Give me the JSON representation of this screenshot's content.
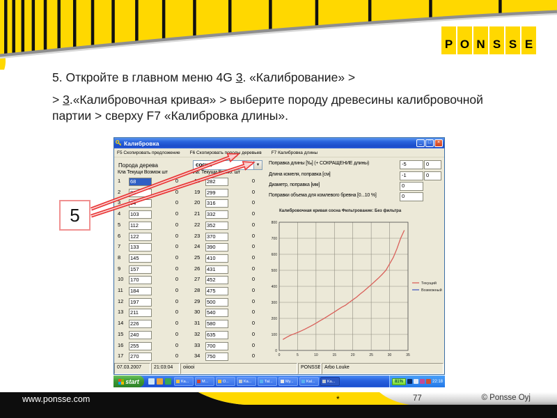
{
  "logo_letters": [
    "P",
    "O",
    "N",
    "S",
    "S",
    "E"
  ],
  "instructions": {
    "line1_pre": "5. Откройте в главном меню 4G ",
    "line1_num": "3",
    "line1_post": ". «Калибрование» >",
    "line2_pre": "> ",
    "line2_num": "3",
    "line2_post": ".«Калибровочная кривая» > выберите породу древесины калибровочной партии > сверху F7 «Калибровка длины»."
  },
  "annotation": {
    "number": "5"
  },
  "window": {
    "title": "Калибровка",
    "titlebar_buttons": [
      "minimize",
      "restore",
      "close"
    ],
    "menu_items": [
      "F5 Скопировать предложение",
      "F6 Скопировать породы деревьев",
      "F7 Калибровка длины"
    ],
    "species_label": "Порода дерева",
    "species_value": "сосна",
    "table_header_left": "Кла  Текущи Возмож  шт",
    "table_header_right": "Кла:  Текущи Возмо:  шт",
    "selected_class": "1",
    "table_left": [
      [
        "1",
        "68",
        "0"
      ],
      [
        "2",
        "82",
        "0"
      ],
      [
        "3",
        "94",
        "0"
      ],
      [
        "4",
        "103",
        "0"
      ],
      [
        "5",
        "112",
        "0"
      ],
      [
        "6",
        "122",
        "0"
      ],
      [
        "7",
        "133",
        "0"
      ],
      [
        "8",
        "145",
        "0"
      ],
      [
        "9",
        "157",
        "0"
      ],
      [
        "10",
        "170",
        "0"
      ],
      [
        "11",
        "184",
        "0"
      ],
      [
        "12",
        "197",
        "0"
      ],
      [
        "13",
        "211",
        "0"
      ],
      [
        "14",
        "226",
        "0"
      ],
      [
        "15",
        "240",
        "0"
      ],
      [
        "16",
        "255",
        "0"
      ],
      [
        "17",
        "270",
        "0"
      ]
    ],
    "table_right": [
      [
        "18",
        "282",
        "0"
      ],
      [
        "19",
        "299",
        "0"
      ],
      [
        "20",
        "316",
        "0"
      ],
      [
        "21",
        "332",
        "0"
      ],
      [
        "22",
        "352",
        "0"
      ],
      [
        "23",
        "370",
        "0"
      ],
      [
        "24",
        "390",
        "0"
      ],
      [
        "25",
        "410",
        "0"
      ],
      [
        "26",
        "431",
        "0"
      ],
      [
        "27",
        "452",
        "0"
      ],
      [
        "28",
        "475",
        "0"
      ],
      [
        "29",
        "500",
        "0"
      ],
      [
        "30",
        "540",
        "0"
      ],
      [
        "31",
        "580",
        "0"
      ],
      [
        "32",
        "635",
        "0"
      ],
      [
        "33",
        "700",
        "0"
      ],
      [
        "34",
        "750",
        "0"
      ]
    ],
    "settings": [
      {
        "label": "Поправка длины [‰] (+ СОКРАЩЕНИЕ длины)",
        "values": [
          "-5",
          "0"
        ]
      },
      {
        "label": "Длина комеля, поправка [см]",
        "values": [
          "-1",
          "0"
        ]
      },
      {
        "label": "Диаметр, поправка [мм]",
        "values": [
          "0"
        ]
      },
      {
        "label": "Поправки объема для комлевого бревна [0...10 %]",
        "values": [
          "0"
        ]
      }
    ],
    "status_cells": [
      "07.03.2007",
      "21:03:04",
      "oiiooi",
      "PONSSE",
      "Arbo Louke"
    ]
  },
  "chart_data": {
    "type": "line",
    "title": "Калибровочная кривая сосна    Фильтрование: Без фильтра",
    "x": [
      1,
      2,
      3,
      4,
      5,
      6,
      7,
      8,
      9,
      10,
      11,
      12,
      13,
      14,
      15,
      16,
      17,
      18,
      19,
      20,
      21,
      22,
      23,
      24,
      25,
      26,
      27,
      28,
      29,
      30,
      31,
      32,
      33,
      34
    ],
    "series": [
      {
        "name": "Текущий",
        "color": "#d9605a",
        "values": [
          68,
          82,
          94,
          103,
          112,
          122,
          133,
          145,
          157,
          170,
          184,
          197,
          211,
          226,
          240,
          255,
          270,
          282,
          299,
          316,
          332,
          352,
          370,
          390,
          410,
          431,
          452,
          475,
          500,
          540,
          580,
          635,
          700,
          750
        ]
      },
      {
        "name": "Возможный",
        "color": "#4a5ec0",
        "values": []
      }
    ],
    "xlabel": "",
    "ylabel": "",
    "xlim": [
      0,
      35
    ],
    "ylim": [
      0,
      800
    ],
    "xticks": [
      0,
      5,
      10,
      15,
      20,
      25,
      30,
      35
    ],
    "yticks": [
      0,
      100,
      200,
      300,
      400,
      500,
      600,
      700,
      800
    ],
    "grid": true,
    "legend_position": "right"
  },
  "taskbar": {
    "start_label": "start",
    "buttons": [
      "Ka...",
      "M...",
      "O...",
      "Ka...",
      "Tal...",
      "My...",
      "Kal...",
      "Ka..."
    ],
    "battery": "81%",
    "time": "22:18"
  },
  "footer": {
    "url": "www.ponsse.com",
    "star": "*",
    "page": "77",
    "copyright": "© Ponsse Oyj"
  },
  "colors": {
    "brand_yellow": "#ffd800",
    "curve_red": "#d9605a",
    "possible_blue": "#4a5ec0",
    "selection_blue": "#2f5fc4",
    "arrow_red": "#e82828"
  }
}
